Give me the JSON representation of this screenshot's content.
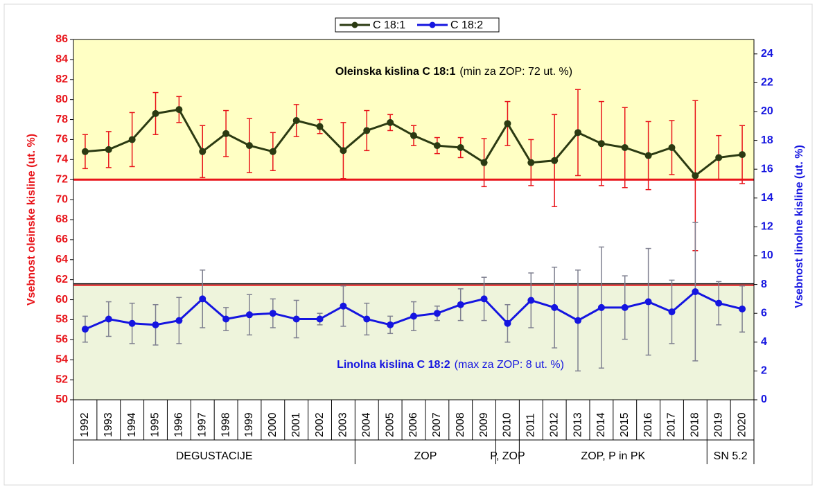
{
  "chart_data": {
    "type": "line",
    "legend": "top",
    "categories": [
      "1992",
      "1993",
      "1994",
      "1995",
      "1996",
      "1997",
      "1998",
      "1999",
      "2000",
      "2001",
      "2002",
      "2003",
      "2004",
      "2005",
      "2006",
      "2007",
      "2008",
      "2009",
      "2010",
      "2011",
      "2012",
      "2013",
      "2014",
      "2015",
      "2016",
      "2017",
      "2018",
      "2019",
      "2020"
    ],
    "series": [
      {
        "name": "C 18:1",
        "color": "#2b3a12",
        "error_color": "#e8141a",
        "values": [
          74.8,
          75.0,
          76.0,
          78.6,
          79.0,
          74.8,
          76.6,
          75.4,
          74.8,
          77.9,
          77.3,
          74.9,
          76.9,
          77.7,
          76.4,
          75.4,
          75.2,
          73.7,
          77.6,
          73.7,
          73.9,
          76.7,
          75.6,
          75.2,
          74.4,
          75.2,
          72.4,
          74.2,
          74.5
        ],
        "errors": [
          1.7,
          1.8,
          2.7,
          2.1,
          1.3,
          2.6,
          2.3,
          2.7,
          1.9,
          1.6,
          0.7,
          2.8,
          2.0,
          0.8,
          1.0,
          0.8,
          1.0,
          2.4,
          2.2,
          2.3,
          4.6,
          4.3,
          4.2,
          4.0,
          3.4,
          2.7,
          7.5,
          2.2,
          2.9
        ]
      },
      {
        "name": "C 18:2",
        "color": "#1515e0",
        "error_color": "#7f8090",
        "axis": "y2",
        "values": [
          4.9,
          5.6,
          5.3,
          5.2,
          5.5,
          7.0,
          5.6,
          5.9,
          6.0,
          5.6,
          5.6,
          6.5,
          5.6,
          5.2,
          5.8,
          6.0,
          6.6,
          7.0,
          5.3,
          6.9,
          6.4,
          5.5,
          6.4,
          6.4,
          6.8,
          6.1,
          7.5,
          6.7,
          6.3
        ],
        "errors": [
          0.9,
          1.2,
          1.4,
          1.4,
          1.6,
          2.0,
          0.8,
          1.4,
          1.0,
          1.3,
          0.4,
          1.4,
          1.1,
          0.6,
          1.0,
          0.5,
          1.1,
          1.5,
          1.3,
          1.9,
          2.8,
          3.5,
          4.2,
          2.2,
          3.7,
          2.2,
          4.8,
          1.5,
          1.6
        ]
      }
    ],
    "ylim": [
      50,
      86
    ],
    "yticks": [
      50,
      52,
      54,
      56,
      58,
      60,
      62,
      64,
      66,
      68,
      70,
      72,
      74,
      76,
      78,
      80,
      82,
      84,
      86
    ],
    "y2lim": [
      0,
      25
    ],
    "y2ticks": [
      0,
      2,
      4,
      6,
      8,
      10,
      12,
      14,
      16,
      18,
      20,
      22,
      24
    ],
    "ylabel": "Vsebnost oleinske kisline (ut. %)",
    "y2label": "Vsebnost linolne kisline (ut. %)",
    "threshold": 72,
    "threshold_fill": "#ffffc4",
    "y2_threshold": 8,
    "y2_threshold_fill": "#eef4dc",
    "annotations": [
      {
        "bold": "Oleinska  kislina  C 18:1",
        "text": "(min za ZOP: 72 ut. %)",
        "color": "#000000"
      },
      {
        "bold": "Linolna  kislina  C 18:2",
        "text": "(max za ZOP: 8 ut. %)",
        "color": "#1515e0"
      }
    ],
    "groups": [
      {
        "label": "DEGUSTACIJE",
        "from": "1992",
        "to": "2003"
      },
      {
        "label": "ZOP",
        "from": "2004",
        "to": "2009"
      },
      {
        "label": "P, ZOP",
        "from": "2010",
        "to": "2010"
      },
      {
        "label": "ZOP, P in PK",
        "from": "2011",
        "to": "2018"
      },
      {
        "label": "SN 5.2",
        "from": "2019",
        "to": "2020"
      }
    ]
  }
}
